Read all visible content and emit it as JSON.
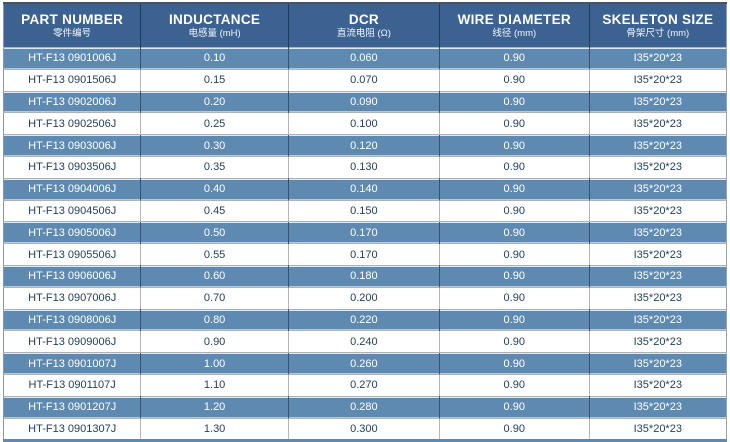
{
  "colors": {
    "header_bg": "#3c6292",
    "row_blue_bg": "#5e8ab1",
    "row_white_bg": "#ffffff",
    "header_text": "#ffffff",
    "row_blue_text": "#ffffff",
    "row_white_text": "#24415f",
    "bottom_border": "#5d89b2"
  },
  "table": {
    "columns": [
      {
        "en": "PART NUMBER",
        "zh": "零件编号"
      },
      {
        "en": "INDUCTANCE",
        "zh": "电感量 (mH)"
      },
      {
        "en": "DCR",
        "zh": "直流电阻 (Ω)"
      },
      {
        "en": "WIRE DIAMETER",
        "zh": "线径 (mm)"
      },
      {
        "en": "SKELETON SIZE",
        "zh": "骨架尺寸 (mm)"
      }
    ],
    "rows": [
      [
        "HT-F13 0901006J",
        "0.10",
        "0.060",
        "0.90",
        "I35*20*23"
      ],
      [
        "HT-F13 0901506J",
        "0.15",
        "0.070",
        "0.90",
        "I35*20*23"
      ],
      [
        "HT-F13 0902006J",
        "0.20",
        "0.090",
        "0.90",
        "I35*20*23"
      ],
      [
        "HT-F13 0902506J",
        "0.25",
        "0.100",
        "0.90",
        "I35*20*23"
      ],
      [
        "HT-F13 0903006J",
        "0.30",
        "0.120",
        "0.90",
        "I35*20*23"
      ],
      [
        "HT-F13 0903506J",
        "0.35",
        "0.130",
        "0.90",
        "I35*20*23"
      ],
      [
        "HT-F13 0904006J",
        "0.40",
        "0.140",
        "0.90",
        "I35*20*23"
      ],
      [
        "HT-F13 0904506J",
        "0.45",
        "0.150",
        "0.90",
        "I35*20*23"
      ],
      [
        "HT-F13 0905006J",
        "0.50",
        "0.170",
        "0.90",
        "I35*20*23"
      ],
      [
        "HT-F13 0905506J",
        "0.55",
        "0.170",
        "0.90",
        "I35*20*23"
      ],
      [
        "HT-F13 0906006J",
        "0.60",
        "0.180",
        "0.90",
        "I35*20*23"
      ],
      [
        "HT-F13 0907006J",
        "0.70",
        "0.200",
        "0.90",
        "I35*20*23"
      ],
      [
        "HT-F13 0908006J",
        "0.80",
        "0.220",
        "0.90",
        "I35*20*23"
      ],
      [
        "HT-F13 0909006J",
        "0.90",
        "0.240",
        "0.90",
        "I35*20*23"
      ],
      [
        "HT-F13 0901007J",
        "1.00",
        "0.260",
        "0.90",
        "I35*20*23"
      ],
      [
        "HT-F13 0901107J",
        "1.10",
        "0.270",
        "0.90",
        "I35*20*23"
      ],
      [
        "HT-F13 0901207J",
        "1.20",
        "0.280",
        "0.90",
        "I35*20*23"
      ],
      [
        "HT-F13 0901307J",
        "1.30",
        "0.300",
        "0.90",
        "I35*20*23"
      ]
    ]
  }
}
